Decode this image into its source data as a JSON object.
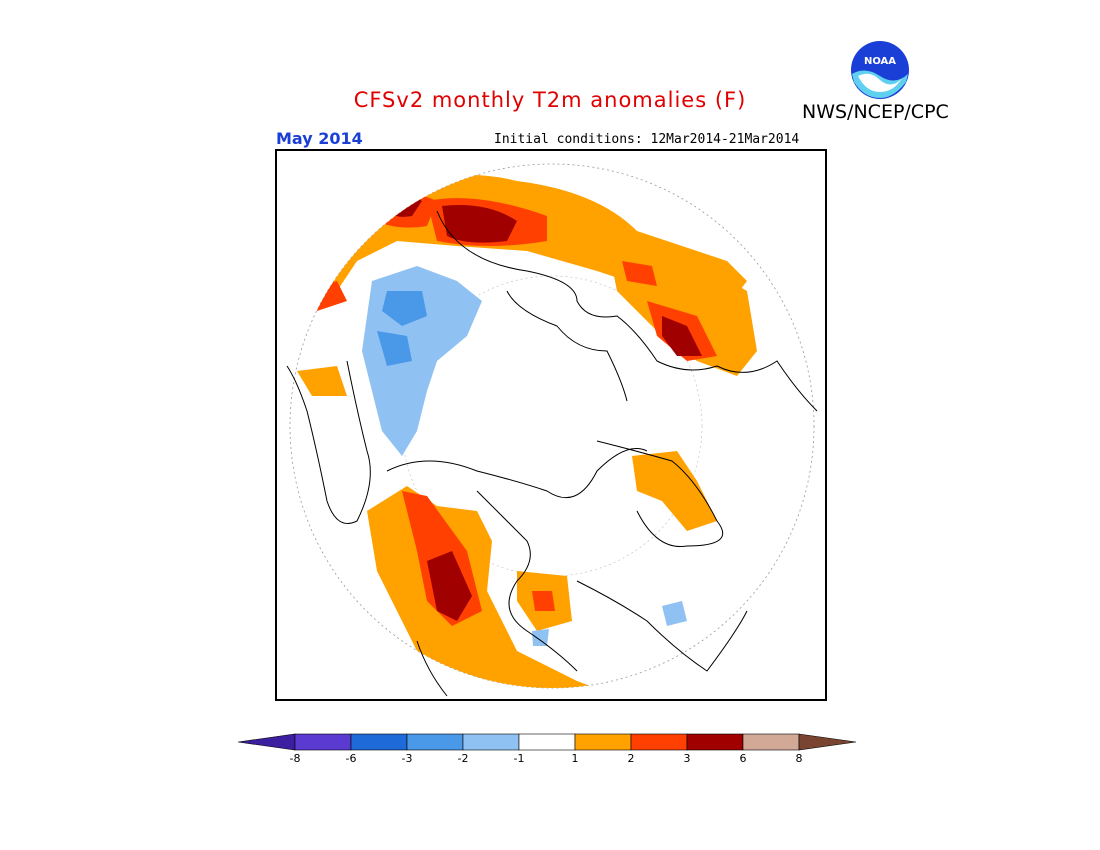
{
  "title": "CFSv2 monthly T2m anomalies (F)",
  "agency": "NWS/NCEP/CPC",
  "logo_text": "NOAA",
  "valid_month": "May 2014",
  "initial_conditions": "Initial conditions: 12Mar2014-21Mar2014",
  "colorbar": {
    "labels": [
      "-8",
      "-6",
      "-3",
      "-2",
      "-1",
      "1",
      "2",
      "3",
      "6",
      "8"
    ],
    "colors": [
      "#3b1fa0",
      "#5a3ad0",
      "#1e6ad8",
      "#4a98e8",
      "#8fc2f2",
      "#ffffff",
      "#ffa200",
      "#ff4000",
      "#a00000",
      "#d2a896",
      "#7a4530"
    ]
  },
  "colors": {
    "title": "#e00000",
    "month": "#1a3fd6",
    "anomaly_orange": "#ffa200",
    "anomaly_red": "#ff4000",
    "anomaly_darkred": "#a00000",
    "anomaly_lightblue": "#8fc2f2",
    "anomaly_blue": "#4a98e8"
  }
}
